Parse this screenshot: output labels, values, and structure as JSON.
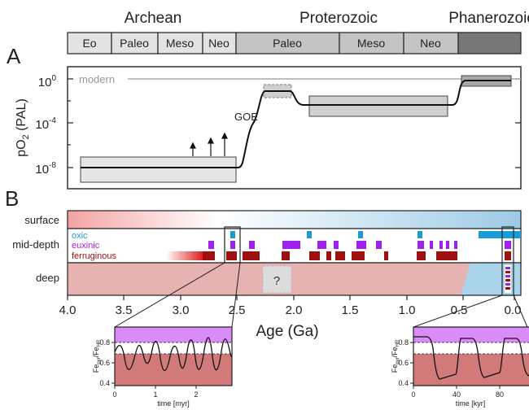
{
  "eons": {
    "archean": "Archean",
    "proterozoic": "Proterozoic",
    "phanerozoic": "Phanerozoic"
  },
  "eras": [
    "Eo",
    "Paleo",
    "Meso",
    "Neo",
    "Paleo",
    "Meso",
    "Neo"
  ],
  "panel_a": {
    "label": "A",
    "ylabel_main": "pO",
    "ylabel_sub": "2",
    "ylabel_unit": " (PAL)",
    "yticks": [
      {
        "base": "10",
        "exp": "0"
      },
      {
        "base": "10",
        "exp": "-4"
      },
      {
        "base": "10",
        "exp": "-8"
      }
    ],
    "modern_label": "modern",
    "goe_label": "GOE"
  },
  "panel_b": {
    "label": "B",
    "rows": {
      "surface": "surface",
      "mid_depth": "mid-depth",
      "deep": "deep"
    },
    "legend": {
      "oxic": "oxic",
      "euxinic": "euxinic",
      "ferruginous": "ferruginous"
    },
    "unknown_mark": "?"
  },
  "xaxis": {
    "label": "Age (Ga)",
    "ticks": [
      "4.0",
      "3.5",
      "3.0",
      "2.5",
      "2.0",
      "1.5",
      "1.0",
      "0.5",
      "0.0"
    ]
  },
  "inset_left": {
    "ylabel": "Fe",
    "ylabel_sub1": "pyr",
    "ylabel_sep": "/Fe",
    "ylabel_sub2": "HR",
    "yticks": [
      "0.8",
      "0.6",
      "0.4"
    ],
    "xticks": [
      "0",
      "1",
      "2"
    ],
    "xlabel": "time [myr]"
  },
  "inset_right": {
    "ylabel": "Fe",
    "ylabel_sub1": "pyr",
    "ylabel_sep": "/Fe",
    "ylabel_sub2": "HR",
    "yticks": [
      "0.8",
      "0.6",
      "0.4"
    ],
    "xticks": [
      "0",
      "40",
      "80"
    ],
    "xlabel": "time [kyr]"
  },
  "colors": {
    "oxic": "#1a9ad6",
    "euxinic": "#a020f0",
    "ferruginous": "#a01010",
    "deep_anoxic": "#e7b2b2",
    "deep_oxic": "#a9d4ea",
    "surface_red": "#f4a3a3",
    "surface_blue": "#a9d4ea"
  }
}
